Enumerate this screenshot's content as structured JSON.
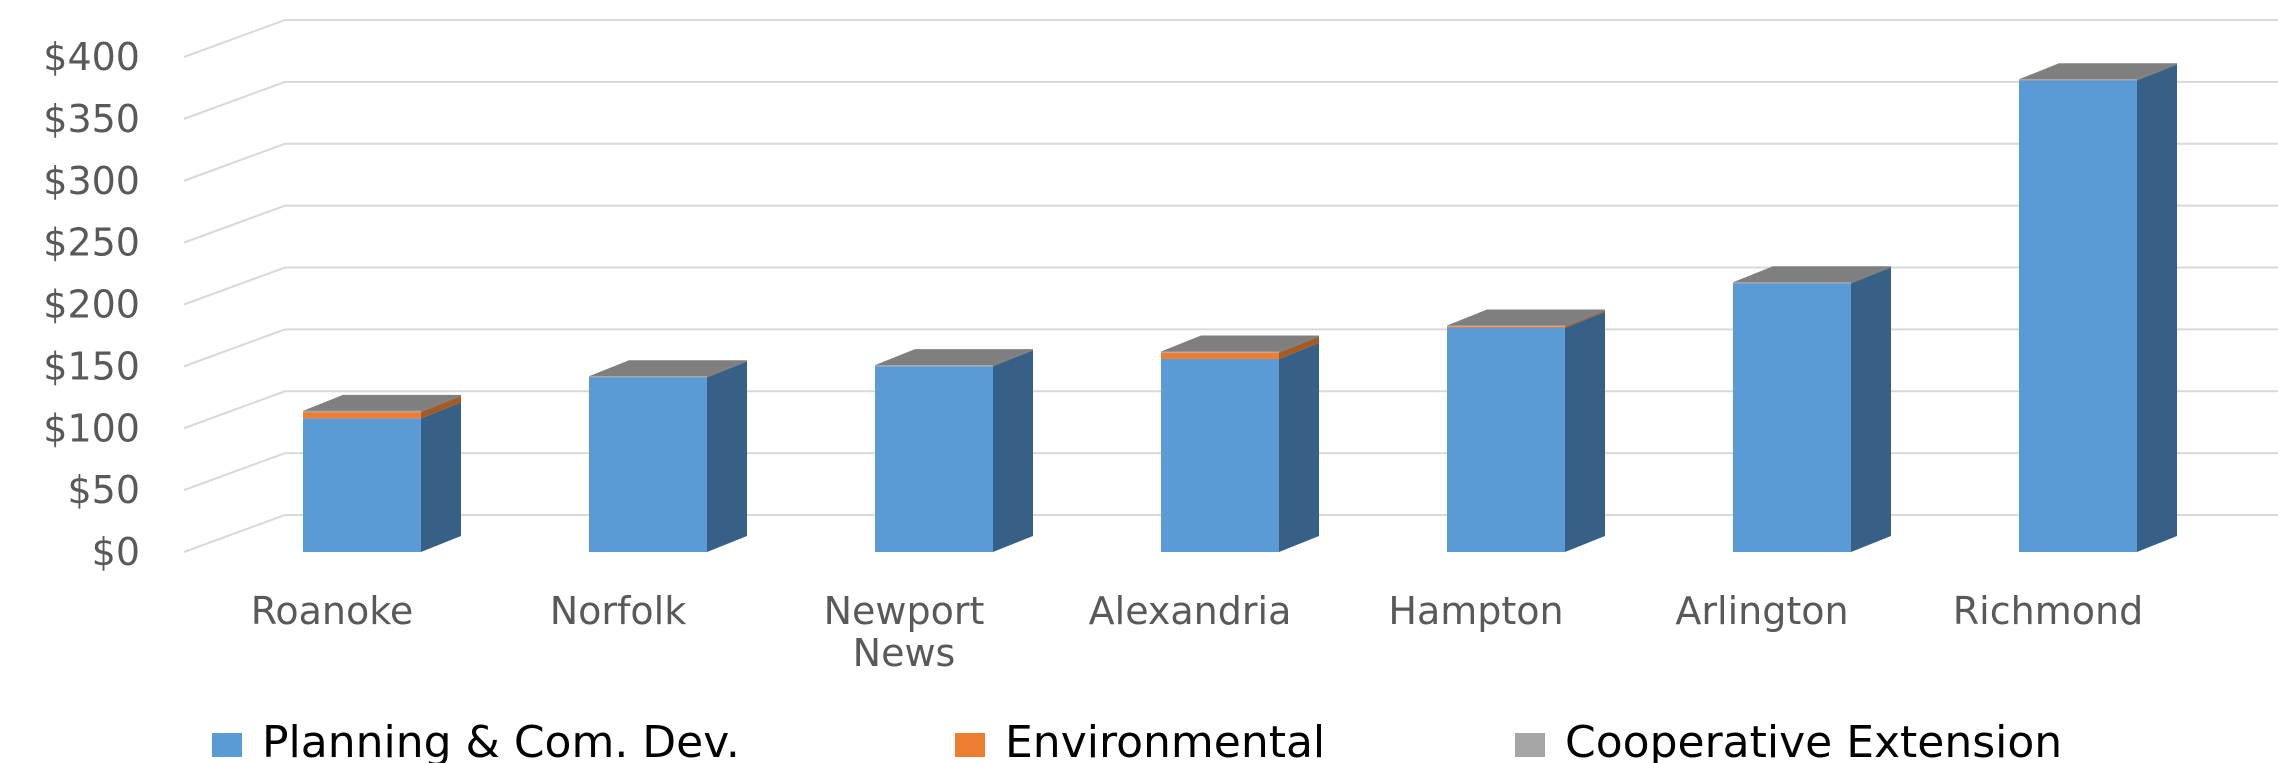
{
  "chart_data": {
    "type": "bar",
    "stacked": true,
    "style": "3d-column",
    "categories": [
      [
        "Roanoke"
      ],
      [
        "Norfolk"
      ],
      [
        "Newport",
        "News"
      ],
      [
        "Alexandria"
      ],
      [
        "Hampton"
      ],
      [
        "Arlington"
      ],
      [
        "Richmond"
      ]
    ],
    "series": [
      {
        "name": "Planning & Com. Dev.",
        "color": "#5B9BD5",
        "side_color": "#376087",
        "values": [
          108,
          141,
          150,
          156,
          181,
          217,
          381
        ]
      },
      {
        "name": "Environmental",
        "color": "#ED7D31",
        "side_color": "#A65A22",
        "values": [
          5,
          0,
          0,
          5,
          1,
          0,
          0
        ]
      },
      {
        "name": "Cooperative Extension",
        "color": "#A5A5A5",
        "side_color": "#737373",
        "values": [
          1,
          1,
          1,
          1,
          1,
          1,
          1
        ]
      }
    ],
    "y_tick_labels": [
      "$0",
      "$50",
      "$100",
      "$150",
      "$200",
      "$250",
      "$300",
      "$350",
      "$400"
    ],
    "ylim": [
      0,
      400
    ],
    "grid": true,
    "legend_position": "bottom"
  }
}
